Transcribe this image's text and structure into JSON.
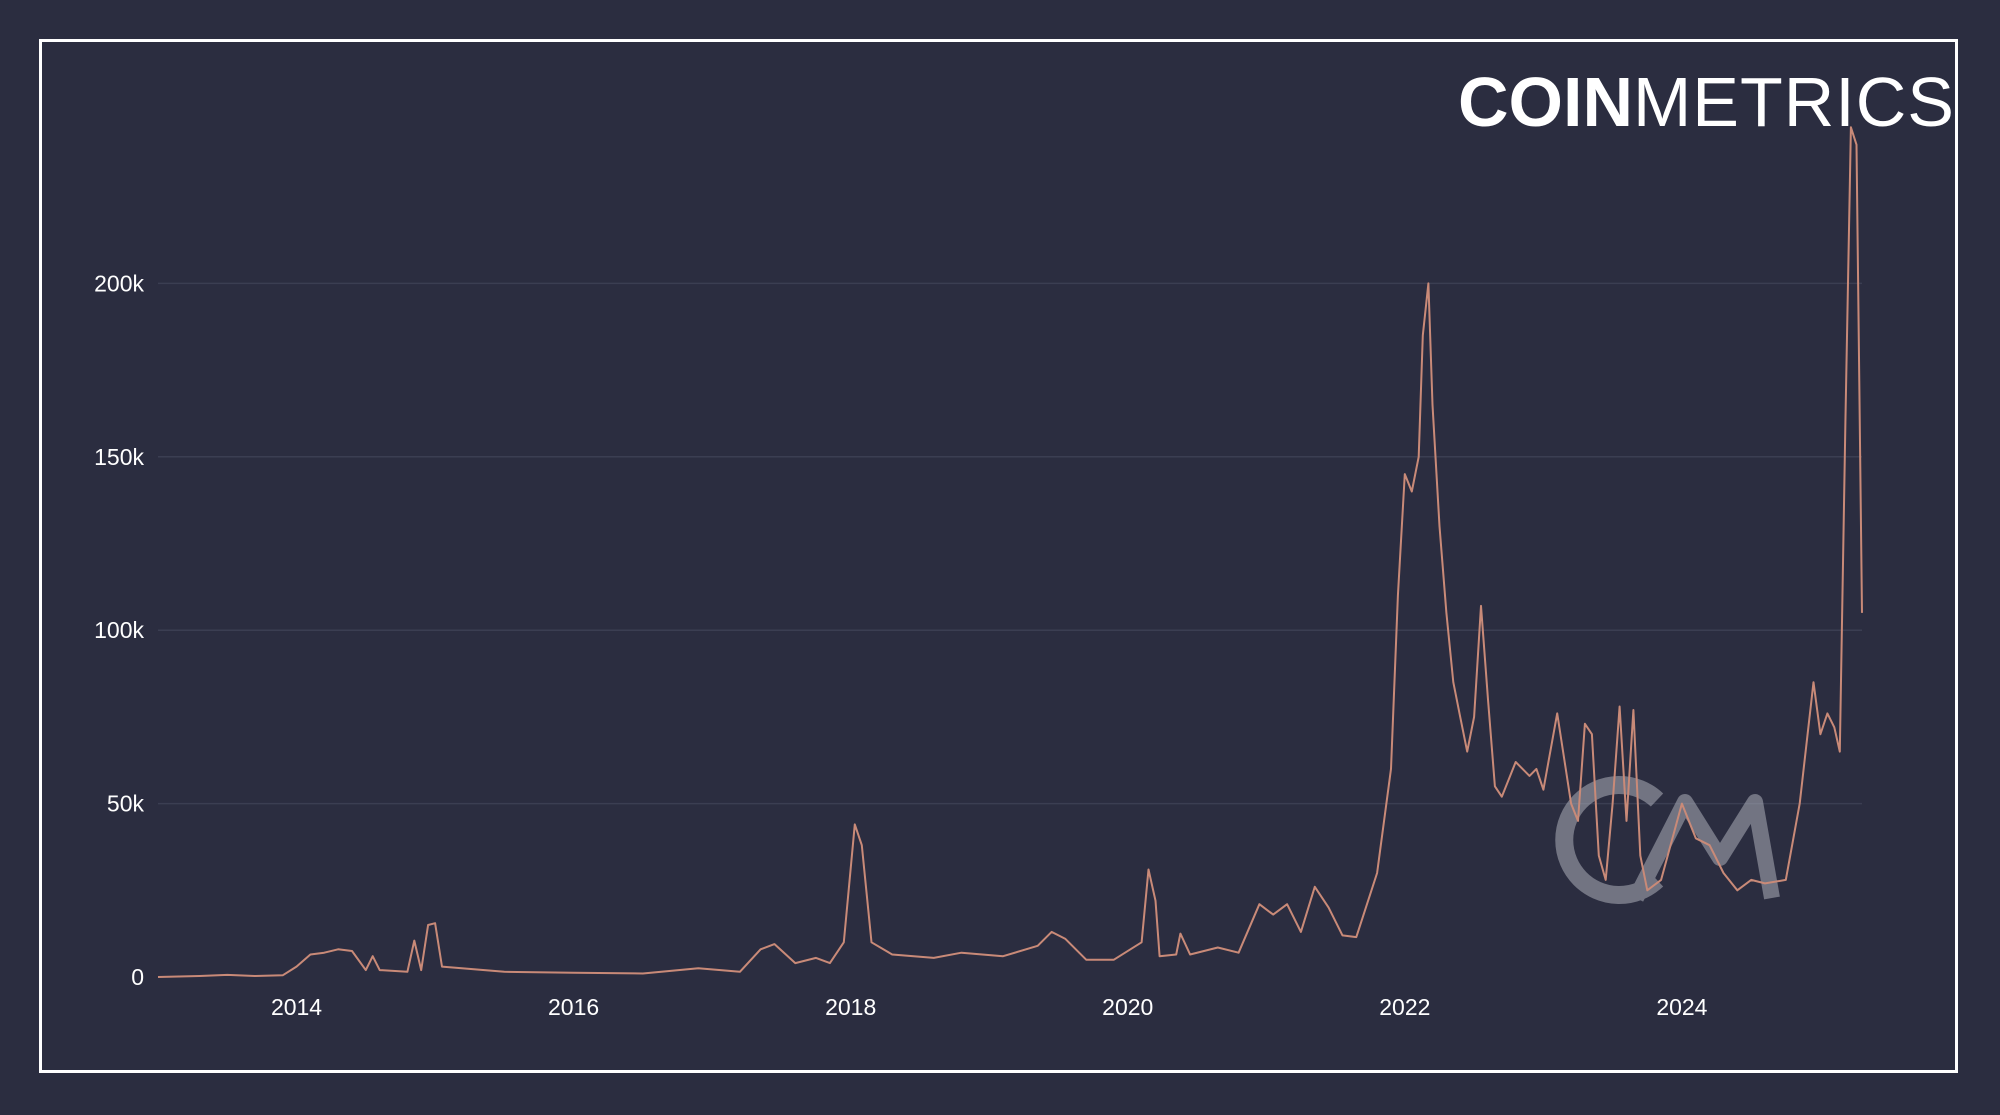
{
  "brand": {
    "logo_bold": "COIN",
    "logo_light": "METRICS",
    "watermark": "CM"
  },
  "colors": {
    "background": "#2b2d40",
    "frame": "#ffffff",
    "line": "#c98a78",
    "grid": "#3b3e52",
    "text": "#ffffff"
  },
  "chart_data": {
    "type": "line",
    "title": "",
    "xlabel": "",
    "ylabel": "",
    "grid": "horizontal",
    "xlim": [
      2013.0,
      2025.3
    ],
    "ylim": [
      0,
      250000
    ],
    "y_ticks": [
      {
        "value": 0,
        "label": "0"
      },
      {
        "value": 50000,
        "label": "50k"
      },
      {
        "value": 100000,
        "label": "100k"
      },
      {
        "value": 150000,
        "label": "150k"
      },
      {
        "value": 200000,
        "label": "200k"
      }
    ],
    "x_ticks": [
      {
        "value": 2014,
        "label": "2014"
      },
      {
        "value": 2016,
        "label": "2016"
      },
      {
        "value": 2018,
        "label": "2018"
      },
      {
        "value": 2020,
        "label": "2020"
      },
      {
        "value": 2022,
        "label": "2022"
      },
      {
        "value": 2024,
        "label": "2024"
      }
    ],
    "series": [
      {
        "points": [
          [
            2013.0,
            0
          ],
          [
            2013.3,
            300
          ],
          [
            2013.5,
            600
          ],
          [
            2013.7,
            300
          ],
          [
            2013.9,
            500
          ],
          [
            2014.0,
            3000
          ],
          [
            2014.1,
            6500
          ],
          [
            2014.2,
            7000
          ],
          [
            2014.3,
            8000
          ],
          [
            2014.4,
            7500
          ],
          [
            2014.5,
            2000
          ],
          [
            2014.55,
            6000
          ],
          [
            2014.6,
            2000
          ],
          [
            2014.8,
            1500
          ],
          [
            2014.85,
            10500
          ],
          [
            2014.9,
            2000
          ],
          [
            2014.95,
            15000
          ],
          [
            2015.0,
            15500
          ],
          [
            2015.05,
            3000
          ],
          [
            2015.5,
            1500
          ],
          [
            2016.0,
            1200
          ],
          [
            2016.5,
            1000
          ],
          [
            2016.9,
            2500
          ],
          [
            2017.2,
            1500
          ],
          [
            2017.35,
            8000
          ],
          [
            2017.45,
            9500
          ],
          [
            2017.6,
            4000
          ],
          [
            2017.75,
            5500
          ],
          [
            2017.85,
            4000
          ],
          [
            2017.95,
            10000
          ],
          [
            2018.03,
            44000
          ],
          [
            2018.08,
            38000
          ],
          [
            2018.15,
            10000
          ],
          [
            2018.3,
            6500
          ],
          [
            2018.6,
            5500
          ],
          [
            2018.8,
            7000
          ],
          [
            2019.1,
            6000
          ],
          [
            2019.35,
            9000
          ],
          [
            2019.45,
            13000
          ],
          [
            2019.55,
            11000
          ],
          [
            2019.7,
            5000
          ],
          [
            2019.9,
            5000
          ],
          [
            2020.1,
            10000
          ],
          [
            2020.15,
            31000
          ],
          [
            2020.2,
            22000
          ],
          [
            2020.23,
            6000
          ],
          [
            2020.35,
            6500
          ],
          [
            2020.38,
            12500
          ],
          [
            2020.45,
            6500
          ],
          [
            2020.65,
            8500
          ],
          [
            2020.8,
            7000
          ],
          [
            2020.95,
            21000
          ],
          [
            2021.05,
            18000
          ],
          [
            2021.15,
            21000
          ],
          [
            2021.25,
            13000
          ],
          [
            2021.35,
            26000
          ],
          [
            2021.45,
            20000
          ],
          [
            2021.55,
            12000
          ],
          [
            2021.65,
            11500
          ],
          [
            2021.8,
            30000
          ],
          [
            2021.9,
            60000
          ],
          [
            2021.95,
            110000
          ],
          [
            2022.0,
            145000
          ],
          [
            2022.05,
            140000
          ],
          [
            2022.1,
            150000
          ],
          [
            2022.13,
            185000
          ],
          [
            2022.17,
            200000
          ],
          [
            2022.2,
            165000
          ],
          [
            2022.25,
            130000
          ],
          [
            2022.3,
            105000
          ],
          [
            2022.35,
            85000
          ],
          [
            2022.4,
            75000
          ],
          [
            2022.45,
            65000
          ],
          [
            2022.5,
            75000
          ],
          [
            2022.55,
            107000
          ],
          [
            2022.6,
            80000
          ],
          [
            2022.65,
            55000
          ],
          [
            2022.7,
            52000
          ],
          [
            2022.8,
            62000
          ],
          [
            2022.9,
            58000
          ],
          [
            2022.95,
            60000
          ],
          [
            2023.0,
            54000
          ],
          [
            2023.1,
            76000
          ],
          [
            2023.2,
            50000
          ],
          [
            2023.25,
            45000
          ],
          [
            2023.3,
            73000
          ],
          [
            2023.35,
            70000
          ],
          [
            2023.4,
            35000
          ],
          [
            2023.45,
            28000
          ],
          [
            2023.5,
            50000
          ],
          [
            2023.55,
            78000
          ],
          [
            2023.6,
            45000
          ],
          [
            2023.65,
            77000
          ],
          [
            2023.7,
            35000
          ],
          [
            2023.75,
            25000
          ],
          [
            2023.85,
            28000
          ],
          [
            2024.0,
            50000
          ],
          [
            2024.1,
            40000
          ],
          [
            2024.2,
            38000
          ],
          [
            2024.3,
            30000
          ],
          [
            2024.4,
            25000
          ],
          [
            2024.5,
            28000
          ],
          [
            2024.6,
            27000
          ],
          [
            2024.75,
            28000
          ],
          [
            2024.85,
            50000
          ],
          [
            2024.95,
            85000
          ],
          [
            2025.0,
            70000
          ],
          [
            2025.05,
            76000
          ],
          [
            2025.1,
            72000
          ],
          [
            2025.14,
            65000
          ],
          [
            2025.18,
            160000
          ],
          [
            2025.22,
            245000
          ],
          [
            2025.26,
            240000
          ],
          [
            2025.3,
            105000
          ]
        ]
      }
    ]
  }
}
